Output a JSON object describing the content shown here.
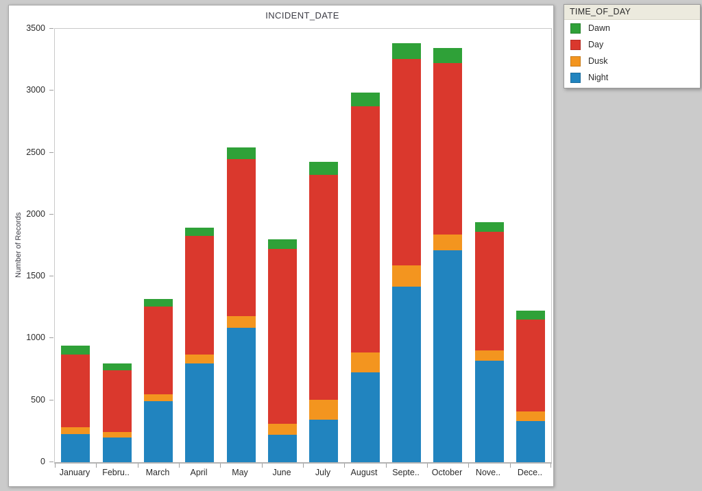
{
  "window": {
    "background": "#cbcbcb"
  },
  "chart_data": {
    "type": "bar",
    "stacked": true,
    "title": "INCIDENT_DATE",
    "ylabel": "Number of Records",
    "legend_title": "TIME_OF_DAY",
    "legend_position": "top-right-outside",
    "legend_order": [
      "Dawn",
      "Day",
      "Dusk",
      "Night"
    ],
    "grid": false,
    "ylim": [
      0,
      3500
    ],
    "ytick_step": 500,
    "categories": [
      "January",
      "Febru..",
      "March",
      "April",
      "May",
      "June",
      "July",
      "August",
      "Septe..",
      "October",
      "Nove..",
      "Dece.."
    ],
    "series": [
      {
        "name": "Night",
        "color": "#2184bf",
        "values": [
          225,
          200,
          495,
          795,
          1085,
          220,
          345,
          725,
          1420,
          1710,
          820,
          330
        ]
      },
      {
        "name": "Dusk",
        "color": "#f3951f",
        "values": [
          55,
          45,
          55,
          75,
          95,
          90,
          160,
          160,
          170,
          130,
          85,
          80
        ]
      },
      {
        "name": "Day",
        "color": "#da382d",
        "values": [
          590,
          495,
          705,
          955,
          1270,
          1415,
          1815,
          1990,
          1665,
          1385,
          955,
          740
        ]
      },
      {
        "name": "Dawn",
        "color": "#2fa138",
        "values": [
          70,
          60,
          65,
          70,
          90,
          75,
          105,
          110,
          130,
          120,
          80,
          75
        ]
      }
    ],
    "totals": [
      940,
      800,
      1320,
      1895,
      2540,
      1800,
      2425,
      2985,
      3385,
      3345,
      1940,
      1225
    ]
  }
}
